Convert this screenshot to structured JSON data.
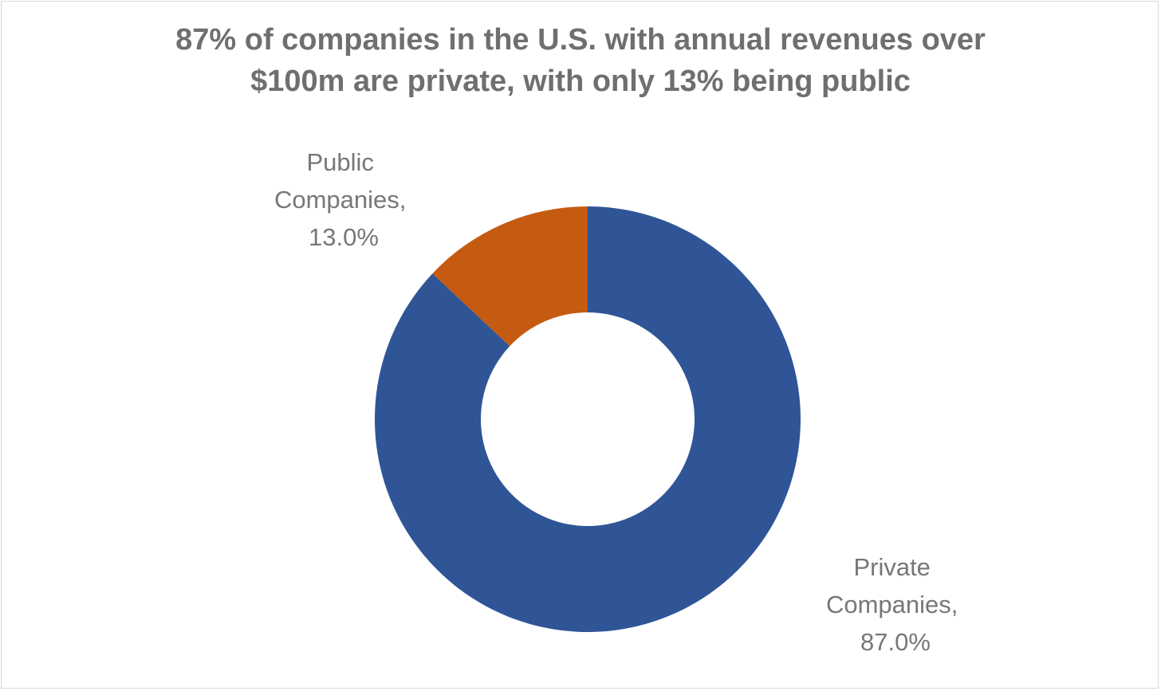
{
  "chart_data": {
    "type": "pie",
    "style": "doughnut",
    "title": {
      "line1": "87% of companies in the U.S. with annual revenues over",
      "line2": "$100m are private, with only 13% being public"
    },
    "slices": [
      {
        "name": "Private Companies",
        "value": 87.0,
        "label_lines": [
          "Private",
          "Companies,",
          "87.0%"
        ],
        "color": "#2f5597"
      },
      {
        "name": "Public Companies",
        "value": 13.0,
        "label_lines": [
          "Public",
          "Companies,",
          "13.0%"
        ],
        "color": "#c55a11"
      }
    ],
    "legend": "none",
    "xlabel": "",
    "ylabel": ""
  }
}
